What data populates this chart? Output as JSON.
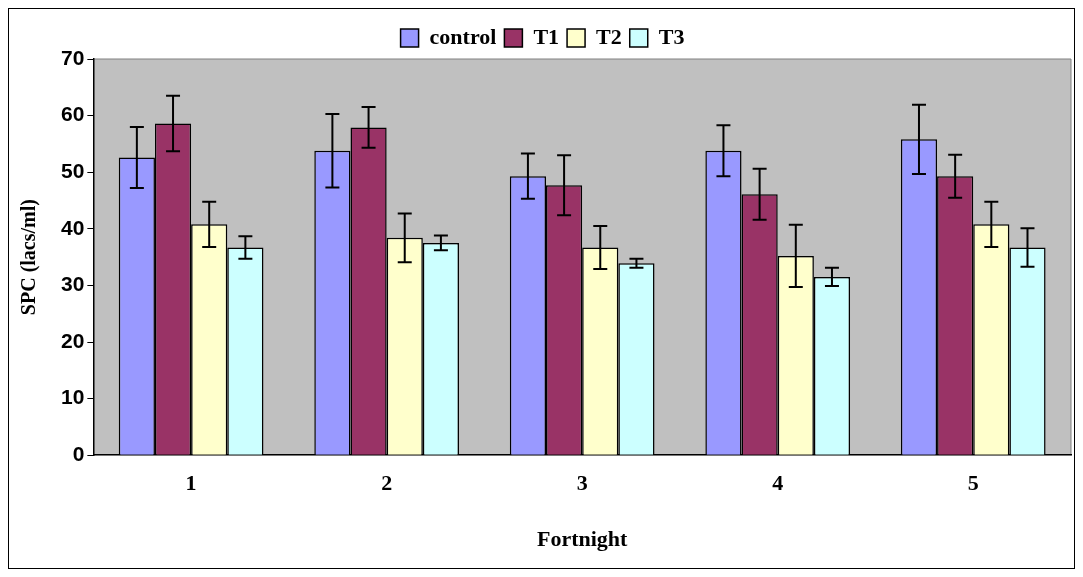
{
  "chart_data": {
    "type": "bar",
    "xlabel": "Fortnight",
    "ylabel": "SPC (lacs/ml)",
    "categories": [
      "1",
      "2",
      "3",
      "4",
      "5"
    ],
    "series": [
      {
        "name": "control",
        "color": "#9999ff",
        "values": [
          52.6,
          53.8,
          49.3,
          53.8,
          55.8
        ],
        "errors": [
          5.4,
          6.5,
          4.0,
          4.5,
          6.1
        ]
      },
      {
        "name": "T1",
        "color": "#993366",
        "values": [
          58.6,
          57.9,
          47.7,
          46.1,
          49.3
        ],
        "errors": [
          4.9,
          3.6,
          5.3,
          4.5,
          3.8
        ]
      },
      {
        "name": "T2",
        "color": "#ffffcc",
        "values": [
          40.8,
          38.4,
          36.7,
          35.2,
          40.8
        ],
        "errors": [
          4.0,
          4.3,
          3.8,
          5.5,
          4.0
        ]
      },
      {
        "name": "T3",
        "color": "#ccffff",
        "values": [
          36.7,
          37.5,
          33.9,
          31.5,
          36.7
        ],
        "errors": [
          2.0,
          1.3,
          0.8,
          1.6,
          3.4
        ]
      }
    ],
    "ylim": [
      0,
      70
    ],
    "yticks": [
      0,
      10,
      20,
      30,
      40,
      50,
      60,
      70
    ],
    "grid": false,
    "legend": "top"
  }
}
